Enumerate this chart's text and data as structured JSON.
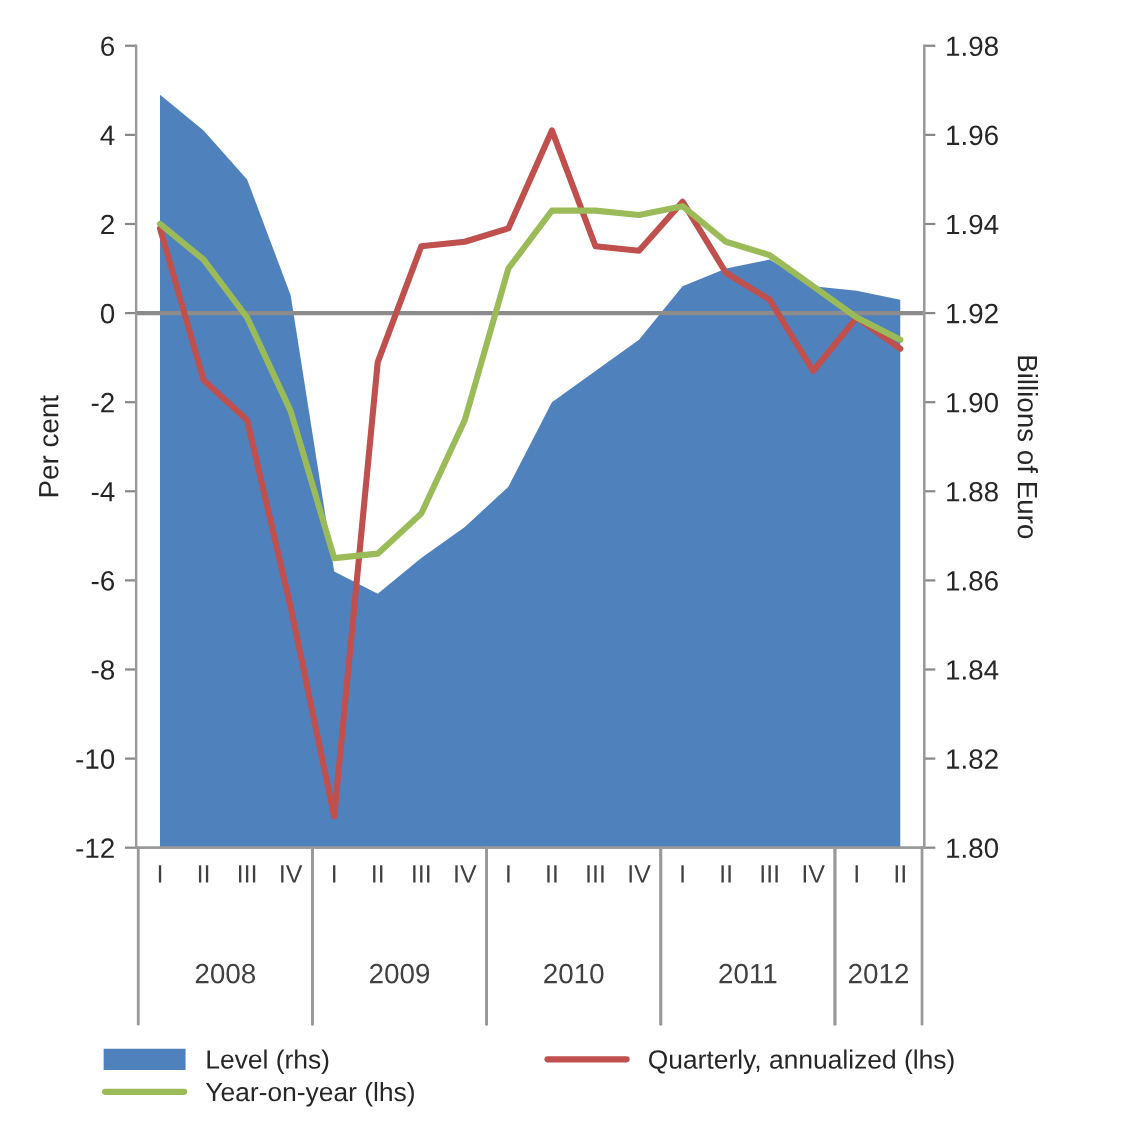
{
  "chart_data": {
    "type": "line",
    "categories": [
      "I",
      "II",
      "III",
      "IV",
      "I",
      "II",
      "III",
      "IV",
      "I",
      "II",
      "III",
      "IV",
      "I",
      "II",
      "III",
      "IV",
      "I",
      "II"
    ],
    "series": [
      {
        "name": "Level (rhs)",
        "type": "area",
        "axis": "y2",
        "color": "#4f81bd",
        "values": [
          1.969,
          1.961,
          1.95,
          1.924,
          1.862,
          1.857,
          1.865,
          1.872,
          1.881,
          1.9,
          1.907,
          1.914,
          1.926,
          1.93,
          1.932,
          1.926,
          1.925,
          1.923
        ]
      },
      {
        "name": "Quarterly, annualized (lhs)",
        "color": "#c0504d",
        "values": [
          1.9,
          -1.5,
          -2.4,
          -6.6,
          -11.3,
          -1.1,
          1.5,
          1.6,
          1.9,
          4.1,
          1.5,
          1.4,
          2.5,
          0.9,
          0.3,
          -1.3,
          -0.1,
          -0.8
        ]
      },
      {
        "name": "Year-on-year (lhs)",
        "color": "#9bbb59",
        "values": [
          2.0,
          1.2,
          -0.1,
          -2.2,
          -5.5,
          -5.4,
          -4.5,
          -2.4,
          1.0,
          2.3,
          2.3,
          2.2,
          2.4,
          1.6,
          1.3,
          0.6,
          -0.1,
          -0.6
        ]
      }
    ],
    "ylabel": "Per cent",
    "y2label": "Billions of Euro",
    "ylim": [
      -12,
      6
    ],
    "yticks": [
      -12,
      -10,
      -8,
      -6,
      -4,
      -2,
      0,
      2,
      4,
      6
    ],
    "y2lim": [
      1.8,
      1.98
    ],
    "y2ticks": [
      {
        "value": 1.8,
        "label": "1.80"
      },
      {
        "value": 1.82,
        "label": "1.82"
      },
      {
        "value": 1.84,
        "label": "1.84"
      },
      {
        "value": 1.86,
        "label": "1.86"
      },
      {
        "value": 1.88,
        "label": "1.88"
      },
      {
        "value": 1.9,
        "label": "1.90"
      },
      {
        "value": 1.92,
        "label": "1.92"
      },
      {
        "value": 1.94,
        "label": "1.94"
      },
      {
        "value": 1.96,
        "label": "1.96"
      },
      {
        "value": 1.98,
        "label": "1.98"
      }
    ],
    "ref_lines": [
      {
        "axis": "y",
        "value": 0,
        "color": "#8c8c8c"
      }
    ],
    "annotations": [
      "2008",
      "2009",
      "2010",
      "2011",
      "2012"
    ],
    "legend": "bottom",
    "grid": false
  }
}
